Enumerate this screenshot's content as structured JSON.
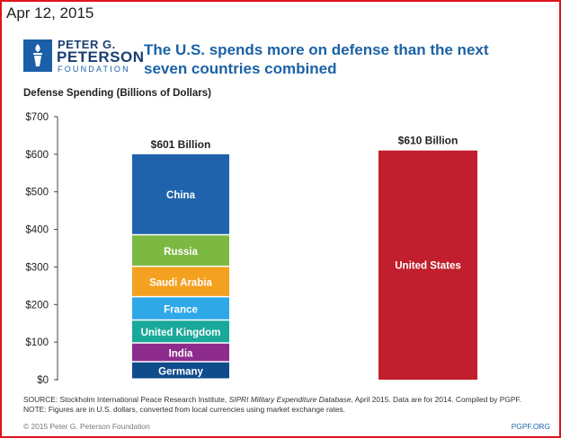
{
  "date": "Apr 12, 2015",
  "logo": {
    "line1": "PETER G.",
    "line2": "PETERSON",
    "line3": "FOUNDATION"
  },
  "title": "The U.S. spends more on defense than the next seven countries combined",
  "colors": {
    "China": "#1f63ad",
    "Russia": "#7cb842",
    "Saudi Arabia": "#f4a020",
    "France": "#2fa8e8",
    "United Kingdom": "#1aa89a",
    "India": "#8e2c8e",
    "Germany": "#0f4c8c",
    "United States": "#c11f2d"
  },
  "chart_data": {
    "type": "bar",
    "ylabel": "Defense Spending (Billions of Dollars)",
    "ylim": [
      0,
      700
    ],
    "yticks": [
      "$0",
      "$100",
      "$200",
      "$300",
      "$400",
      "$500",
      "$600",
      "$700"
    ],
    "stack": {
      "total_label": "$601 Billion",
      "segments": [
        {
          "name": "Germany",
          "value": 46
        },
        {
          "name": "India",
          "value": 50
        },
        {
          "name": "United Kingdom",
          "value": 61
        },
        {
          "name": "France",
          "value": 62
        },
        {
          "name": "Saudi Arabia",
          "value": 81
        },
        {
          "name": "Russia",
          "value": 84
        },
        {
          "name": "China",
          "value": 216
        }
      ]
    },
    "single": {
      "name": "United States",
      "value": 610,
      "total_label": "$610 Billion"
    }
  },
  "source_line1_a": "SOURCE: Stockholm International Peace Research Institute, ",
  "source_line1_i": "SIPRI Military Expenditure Database",
  "source_line1_b": ", April 2015. Data are for 2014. Compiled by PGPF.",
  "source_line2": "NOTE: Figures are in U.S. dollars, converted from local currencies using market exchange rates.",
  "copyright": "© 2015 Peter G. Peterson Foundation",
  "site": "PGPF.ORG"
}
